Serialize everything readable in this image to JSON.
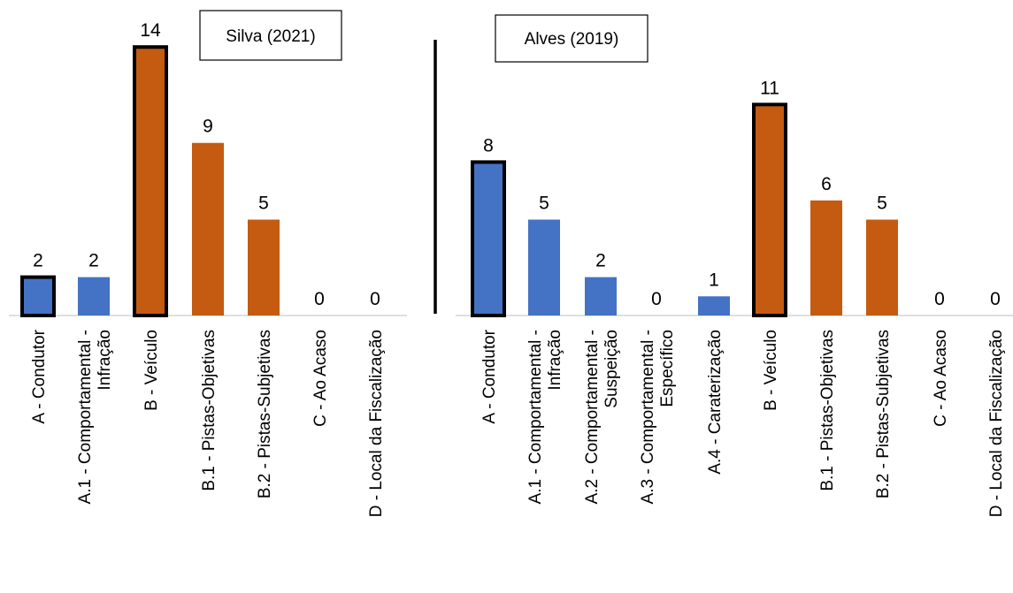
{
  "chart_data": [
    {
      "type": "bar",
      "title": "Silva (2021)",
      "categories": [
        [
          "A - Condutor"
        ],
        [
          "A.1 - Comportamental -",
          "Infração"
        ],
        [
          "B - Veículo"
        ],
        [
          "B.1 - Pistas-Objetivas"
        ],
        [
          "B.2 - Pistas-Subjetivas"
        ],
        [
          "C - Ao Acaso"
        ],
        [
          "D - Local da Fiscalização"
        ]
      ],
      "values": [
        2,
        2,
        14,
        9,
        5,
        0,
        0
      ],
      "value_labels": [
        "2",
        "2",
        "14",
        "9",
        "5",
        "0",
        "0"
      ],
      "bar_colors": [
        "#4472c4",
        "#4472c4",
        "#c55a11",
        "#c55a11",
        "#c55a11",
        "#4472c4",
        "#4472c4"
      ],
      "highlighted": [
        true,
        false,
        true,
        false,
        false,
        false,
        false
      ],
      "ylim": [
        0,
        14
      ],
      "grid": false
    },
    {
      "type": "bar",
      "title": "Alves (2019)",
      "categories": [
        [
          "A - Condutor"
        ],
        [
          "A.1 - Comportamental -",
          "Infração"
        ],
        [
          "A.2 - Comportamental -",
          "Suspeição"
        ],
        [
          "A.3 - Comportamental -",
          "Específico"
        ],
        [
          "A.4 - Caraterização"
        ],
        [
          "B - Veículo"
        ],
        [
          "B.1 - Pistas-Objetivas"
        ],
        [
          "B.2 - Pistas-Subjetivas"
        ],
        [
          "C - Ao Acaso"
        ],
        [
          "D - Local da Fiscalização"
        ]
      ],
      "values": [
        8,
        5,
        2,
        0,
        1,
        11,
        6,
        5,
        0,
        0
      ],
      "value_labels": [
        "8",
        "5",
        "2",
        "0",
        "1",
        "11",
        "6",
        "5",
        "0",
        "0"
      ],
      "bar_colors": [
        "#4472c4",
        "#4472c4",
        "#4472c4",
        "#4472c4",
        "#4472c4",
        "#c55a11",
        "#c55a11",
        "#c55a11",
        "#c55a11",
        "#c55a11"
      ],
      "highlighted": [
        true,
        false,
        false,
        false,
        false,
        true,
        false,
        false,
        false,
        false
      ],
      "ylim": [
        0,
        14
      ],
      "grid": false
    }
  ]
}
